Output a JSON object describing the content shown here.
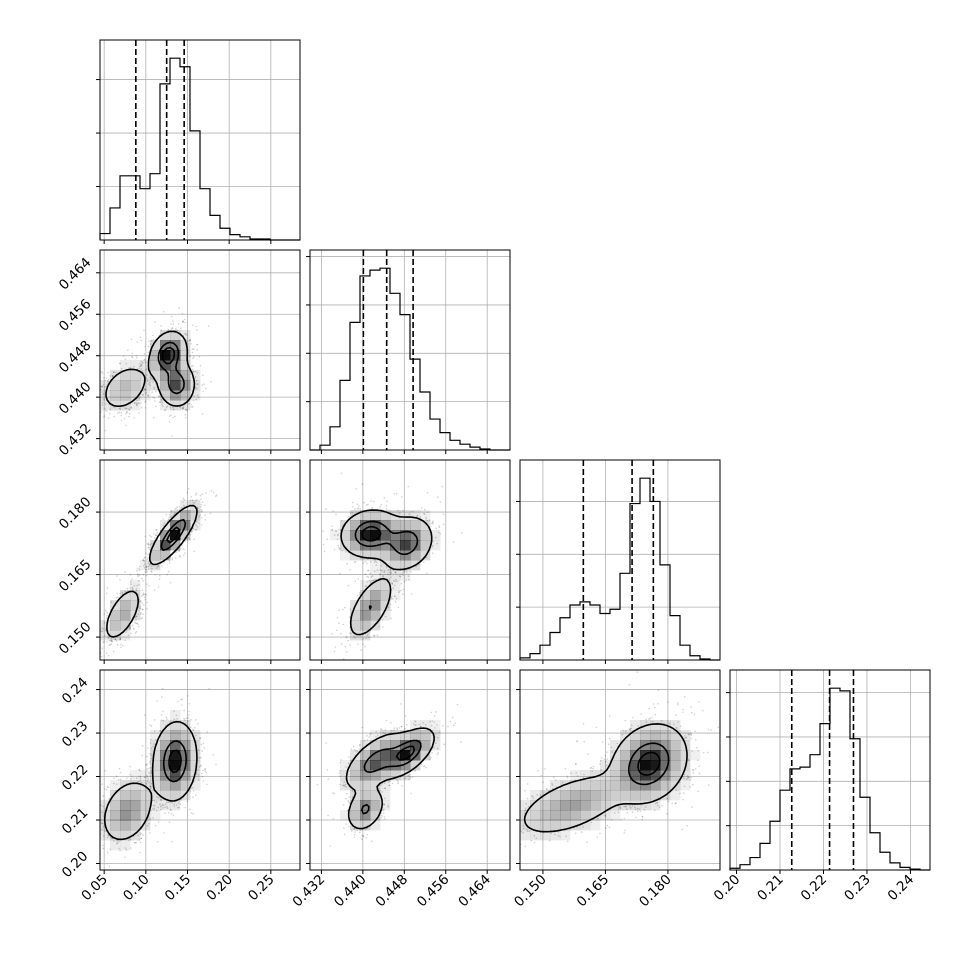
{
  "chart_data": {
    "type": "corner",
    "grid": true,
    "colors": {
      "line": "#000000",
      "grid": "#b0b0b0",
      "points": "#000000",
      "fill": "#000000"
    },
    "parameters": [
      {
        "ticks": [
          0.05,
          0.1,
          0.15,
          0.2,
          0.25
        ],
        "tick_labels": [
          "0.05",
          "0.10",
          "0.15",
          "0.20",
          "0.25"
        ],
        "range": [
          0.045,
          0.285
        ],
        "quantiles": [
          0.088,
          0.125,
          0.146
        ]
      },
      {
        "ticks": [
          0.432,
          0.44,
          0.448,
          0.456,
          0.464
        ],
        "tick_labels": [
          "0.432",
          "0.440",
          "0.448",
          "0.456",
          "0.464"
        ],
        "range": [
          0.4298,
          0.4684
        ],
        "quantiles": [
          0.4401,
          0.4446,
          0.4497
        ]
      },
      {
        "ticks": [
          0.15,
          0.165,
          0.18
        ],
        "tick_labels": [
          "0.150",
          "0.165",
          "0.180"
        ],
        "range": [
          0.1445,
          0.1925
        ],
        "quantiles": [
          0.1597,
          0.1714,
          0.1765
        ]
      },
      {
        "ticks": [
          0.2,
          0.21,
          0.22,
          0.23,
          0.24
        ],
        "tick_labels": [
          "0.20",
          "0.21",
          "0.22",
          "0.23",
          "0.24"
        ],
        "range": [
          0.1985,
          0.2445
        ],
        "quantiles": [
          0.2127,
          0.2214,
          0.2269
        ]
      }
    ],
    "histograms": [
      {
        "param": 0,
        "bin_counts": [
          6,
          30,
          60,
          60,
          48,
          62,
          146,
          170,
          162,
          102,
          48,
          23,
          11,
          5,
          3,
          1,
          1,
          0,
          0,
          0
        ]
      },
      {
        "param": 1,
        "bin_counts": [
          0,
          5,
          24,
          72,
          132,
          180,
          186,
          188,
          162,
          140,
          94,
          60,
          32,
          18,
          10,
          6,
          3,
          1,
          0,
          0
        ]
      },
      {
        "param": 2,
        "bin_counts": [
          2,
          6,
          14,
          26,
          40,
          52,
          55,
          52,
          44,
          48,
          82,
          148,
          172,
          150,
          90,
          42,
          14,
          4,
          1,
          0
        ]
      },
      {
        "param": 3,
        "bin_counts": [
          2,
          6,
          14,
          30,
          55,
          90,
          114,
          116,
          130,
          165,
          205,
          202,
          148,
          82,
          42,
          20,
          8,
          3,
          1,
          0
        ]
      }
    ],
    "pairs": [
      {
        "x_param": 0,
        "y_param": 1,
        "modes": [
          {
            "x": 0.127,
            "y": 0.4482,
            "sx": 0.011,
            "sy": 0.0022,
            "rho": 0.2,
            "w": 1.0
          },
          {
            "x": 0.137,
            "y": 0.4425,
            "sx": 0.011,
            "sy": 0.0022,
            "rho": 0.0,
            "w": 0.8
          },
          {
            "x": 0.075,
            "y": 0.4418,
            "sx": 0.016,
            "sy": 0.0025,
            "rho": 0.35,
            "w": 0.55
          }
        ]
      },
      {
        "x_param": 0,
        "y_param": 2,
        "modes": [
          {
            "x": 0.133,
            "y": 0.1745,
            "sx": 0.014,
            "sy": 0.0035,
            "rho": 0.8,
            "w": 1.0
          },
          {
            "x": 0.072,
            "y": 0.1555,
            "sx": 0.012,
            "sy": 0.0035,
            "rho": 0.6,
            "w": 0.5
          }
        ]
      },
      {
        "x_param": 0,
        "y_param": 3,
        "modes": [
          {
            "x": 0.135,
            "y": 0.2235,
            "sx": 0.013,
            "sy": 0.0045,
            "rho": 0.1,
            "w": 1.0
          },
          {
            "x": 0.078,
            "y": 0.212,
            "sx": 0.016,
            "sy": 0.0038,
            "rho": 0.3,
            "w": 0.55
          }
        ]
      },
      {
        "x_param": 1,
        "y_param": 2,
        "modes": [
          {
            "x": 0.4415,
            "y": 0.1748,
            "sx": 0.0028,
            "sy": 0.0028,
            "rho": 0.1,
            "w": 1.0
          },
          {
            "x": 0.4485,
            "y": 0.1725,
            "sx": 0.0025,
            "sy": 0.0032,
            "rho": 0.2,
            "w": 0.8
          },
          {
            "x": 0.4415,
            "y": 0.1572,
            "sx": 0.0022,
            "sy": 0.0038,
            "rho": 0.6,
            "w": 0.5
          }
        ]
      },
      {
        "x_param": 1,
        "y_param": 3,
        "modes": [
          {
            "x": 0.4425,
            "y": 0.2235,
            "sx": 0.003,
            "sy": 0.0033,
            "rho": 0.6,
            "w": 1.0
          },
          {
            "x": 0.4488,
            "y": 0.2255,
            "sx": 0.0025,
            "sy": 0.0028,
            "rho": 0.6,
            "w": 0.85
          },
          {
            "x": 0.4405,
            "y": 0.2125,
            "sx": 0.0018,
            "sy": 0.0025,
            "rho": 0.3,
            "w": 0.45
          }
        ]
      },
      {
        "x_param": 2,
        "y_param": 3,
        "modes": [
          {
            "x": 0.1755,
            "y": 0.223,
            "sx": 0.0045,
            "sy": 0.0045,
            "rho": 0.2,
            "w": 1.0
          },
          {
            "x": 0.157,
            "y": 0.2135,
            "sx": 0.007,
            "sy": 0.0038,
            "rho": 0.55,
            "w": 0.55
          }
        ]
      }
    ]
  }
}
